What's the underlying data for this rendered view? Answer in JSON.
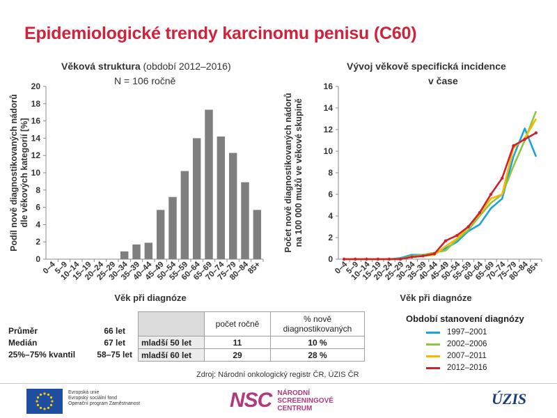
{
  "title": "Epidemiologické trendy karcinomu penisu (C60)",
  "left_chart": {
    "title_bold": "Věková struktura",
    "title_rest": " (období 2012–2016)",
    "subtitle": "N = 106 ročně"
  },
  "right_chart": {
    "title_line1": "Vývoj věkově specifická incidence",
    "title_line2": "v čase"
  },
  "chart_data": [
    {
      "type": "bar",
      "categories": [
        "0–4",
        "5–9",
        "10–14",
        "15–19",
        "20–24",
        "25–29",
        "30–34",
        "35–39",
        "40–44",
        "45–49",
        "50–54",
        "55–59",
        "60–64",
        "65–69",
        "70–74",
        "75–79",
        "80–84",
        "85+"
      ],
      "values": [
        0,
        0,
        0,
        0,
        0,
        0,
        0.9,
        1.7,
        1.9,
        5.7,
        7.2,
        10.2,
        14.0,
        17.3,
        14.2,
        12.3,
        8.9,
        5.7
      ],
      "xlabel": "Věk při diagnóze",
      "ylabel": "Podíl nově diagnostikovaných nádorů dle věkových kategorií [%]",
      "ylim": [
        0,
        20
      ],
      "yticks": [
        0,
        2,
        4,
        6,
        8,
        10,
        12,
        14,
        16,
        18,
        20
      ],
      "colors": {
        "bar": "#7f7f7f"
      }
    },
    {
      "type": "line",
      "categories": [
        "0–4",
        "5–9",
        "10–14",
        "15–19",
        "20–24",
        "25–29",
        "30–34",
        "35–39",
        "40–44",
        "45–49",
        "50–54",
        "55–59",
        "60–64",
        "65–69",
        "70–74",
        "75–79",
        "80–84",
        "85+"
      ],
      "xlabel": "Věk při diagnóze",
      "ylabel": "Počet nově diagnostikovaných nádorů na 100 000 mužů ve věkové skupině",
      "ylim": [
        0,
        16
      ],
      "yticks": [
        0,
        2,
        4,
        6,
        8,
        10,
        12,
        14,
        16
      ],
      "legend_title": "Období stanovení diagnózy",
      "series": [
        {
          "name": "1997–2001",
          "color": "#1aa3dc",
          "values": [
            0,
            0,
            0,
            0,
            0,
            0.1,
            0.4,
            0.4,
            0.5,
            1.0,
            1.6,
            2.6,
            3.2,
            4.7,
            5.6,
            9.5,
            12.1,
            9.5
          ]
        },
        {
          "name": "2002–2006",
          "color": "#8cc63f",
          "values": [
            0,
            0,
            0,
            0,
            0,
            0,
            0.3,
            0.4,
            0.6,
            0.8,
            1.8,
            2.7,
            4.0,
            5.2,
            6.0,
            8.6,
            11.0,
            13.7
          ]
        },
        {
          "name": "2007–2011",
          "color": "#f5b800",
          "values": [
            0,
            0,
            0,
            0,
            0,
            0,
            0.2,
            0.3,
            0.4,
            1.2,
            1.9,
            3.0,
            4.2,
            5.6,
            6.0,
            10.3,
            11.2,
            13.0
          ]
        },
        {
          "name": "2012–2016",
          "color": "#d0202e",
          "values": [
            0,
            0,
            0,
            0,
            0,
            0,
            0.2,
            0.3,
            0.5,
            1.7,
            2.2,
            3.0,
            4.3,
            6.0,
            7.5,
            10.5,
            11.1,
            11.7
          ]
        }
      ]
    }
  ],
  "stats": [
    {
      "label": "Průměr",
      "value": "66 let"
    },
    {
      "label": "Medián",
      "value": "67 let"
    },
    {
      "label": "25%–75% kvantil",
      "value": "58–75 let"
    }
  ],
  "age_table": {
    "col1": "počet ročně",
    "col2": "% nově diagnostikovaných",
    "rows": [
      {
        "label": "mladší 50 let",
        "count": "11",
        "pct": "10 %"
      },
      {
        "label": "mladší 60 let",
        "count": "29",
        "pct": "28 %"
      }
    ]
  },
  "source": "Zdroj: Národní onkologický registr ČR, ÚZIS ČR",
  "footer": {
    "eu_lines": [
      "Evropská unie",
      "Evropský sociální fond",
      "Operační program Zaměstnanost"
    ],
    "nsc_mark": "NSC",
    "nsc_lines": [
      "NÁRODNÍ",
      "SCREENINGOVÉ",
      "CENTRUM"
    ],
    "uzis": "ÚZIS"
  }
}
